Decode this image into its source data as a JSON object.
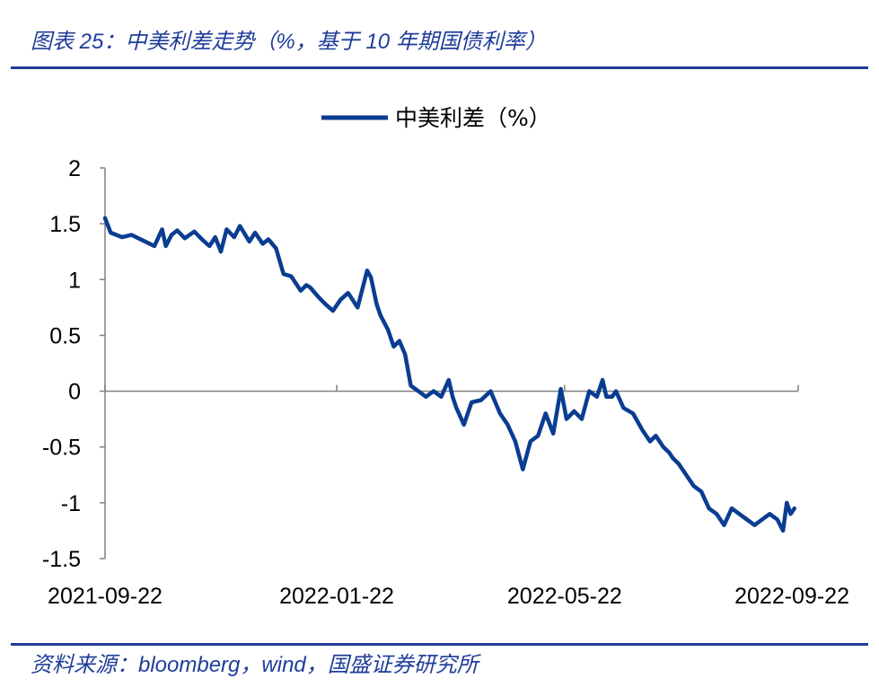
{
  "header": {
    "title": "图表 25：中美利差走势（%，基于 10 年期国债利率）"
  },
  "footer": {
    "source": "资料来源：bloomberg，wind，国盛证券研究所"
  },
  "colors": {
    "series": "#0a3d91",
    "title_text": "#1f3d99",
    "rule": "#1f3d99",
    "axis": "#808080"
  },
  "chart_data": {
    "type": "line",
    "title": "",
    "xlabel": "",
    "ylabel": "",
    "legend": {
      "position": "top-center",
      "entries": [
        "中美利差（%）"
      ]
    },
    "grid": false,
    "ylim": [
      -1.5,
      2
    ],
    "yticks": [
      "2",
      "1.5",
      "1",
      "0.5",
      "0",
      "-0.5",
      "-1",
      "-1.5"
    ],
    "xticks": [
      "2021-09-22",
      "2022-01-22",
      "2022-05-22",
      "2022-09-22"
    ],
    "x_range": [
      "2021-09-22",
      "2022-09-22"
    ],
    "series": [
      {
        "name": "中美利差（%）",
        "x": [
          "2021-09-22",
          "2021-09-25",
          "2021-10-01",
          "2021-10-06",
          "2021-10-12",
          "2021-10-18",
          "2021-10-22",
          "2021-10-24",
          "2021-10-27",
          "2021-10-30",
          "2021-11-03",
          "2021-11-08",
          "2021-11-12",
          "2021-11-16",
          "2021-11-19",
          "2021-11-22",
          "2021-11-25",
          "2021-11-29",
          "2021-12-02",
          "2021-12-07",
          "2021-12-10",
          "2021-12-14",
          "2021-12-17",
          "2021-12-21",
          "2021-12-25",
          "2021-12-29",
          "2022-01-03",
          "2022-01-06",
          "2022-01-08",
          "2022-01-12",
          "2022-01-16",
          "2022-01-20",
          "2022-01-24",
          "2022-01-28",
          "2022-02-02",
          "2022-02-07",
          "2022-02-09",
          "2022-02-12",
          "2022-02-14",
          "2022-02-18",
          "2022-02-21",
          "2022-02-24",
          "2022-02-27",
          "2022-03-02",
          "2022-03-06",
          "2022-03-10",
          "2022-03-14",
          "2022-03-18",
          "2022-03-22",
          "2022-03-24",
          "2022-03-26",
          "2022-03-30",
          "2022-04-03",
          "2022-04-08",
          "2022-04-13",
          "2022-04-18",
          "2022-04-22",
          "2022-04-26",
          "2022-04-30",
          "2022-05-04",
          "2022-05-08",
          "2022-05-12",
          "2022-05-16",
          "2022-05-20",
          "2022-05-23",
          "2022-05-27",
          "2022-05-31",
          "2022-06-04",
          "2022-06-08",
          "2022-06-11",
          "2022-06-13",
          "2022-06-16",
          "2022-06-18",
          "2022-06-22",
          "2022-06-27",
          "2022-07-02",
          "2022-07-06",
          "2022-07-09",
          "2022-07-13",
          "2022-07-16",
          "2022-07-18",
          "2022-07-21",
          "2022-07-25",
          "2022-07-29",
          "2022-08-02",
          "2022-08-06",
          "2022-08-10",
          "2022-08-14",
          "2022-08-18",
          "2022-08-22",
          "2022-08-26",
          "2022-08-30",
          "2022-09-03",
          "2022-09-07",
          "2022-09-11",
          "2022-09-14",
          "2022-09-16",
          "2022-09-18",
          "2022-09-20"
        ],
        "values": [
          1.55,
          1.42,
          1.38,
          1.4,
          1.35,
          1.3,
          1.45,
          1.3,
          1.4,
          1.44,
          1.37,
          1.43,
          1.36,
          1.3,
          1.38,
          1.25,
          1.45,
          1.38,
          1.48,
          1.34,
          1.42,
          1.32,
          1.36,
          1.28,
          1.05,
          1.03,
          0.9,
          0.95,
          0.93,
          0.85,
          0.78,
          0.72,
          0.82,
          0.88,
          0.75,
          1.08,
          1.02,
          0.78,
          0.68,
          0.55,
          0.4,
          0.45,
          0.33,
          0.05,
          0.0,
          -0.05,
          0.0,
          -0.05,
          0.1,
          -0.05,
          -0.15,
          -0.3,
          -0.1,
          -0.08,
          0.0,
          -0.2,
          -0.3,
          -0.45,
          -0.7,
          -0.45,
          -0.4,
          -0.2,
          -0.38,
          0.02,
          -0.25,
          -0.18,
          -0.25,
          0.0,
          -0.05,
          0.1,
          -0.05,
          -0.05,
          0.0,
          -0.15,
          -0.2,
          -0.35,
          -0.45,
          -0.4,
          -0.5,
          -0.55,
          -0.6,
          -0.65,
          -0.75,
          -0.85,
          -0.9,
          -1.05,
          -1.1,
          -1.2,
          -1.05,
          -1.1,
          -1.15,
          -1.2,
          -1.15,
          -1.1,
          -1.15,
          -1.25,
          -1.0,
          -1.1,
          -1.05
        ]
      }
    ]
  }
}
